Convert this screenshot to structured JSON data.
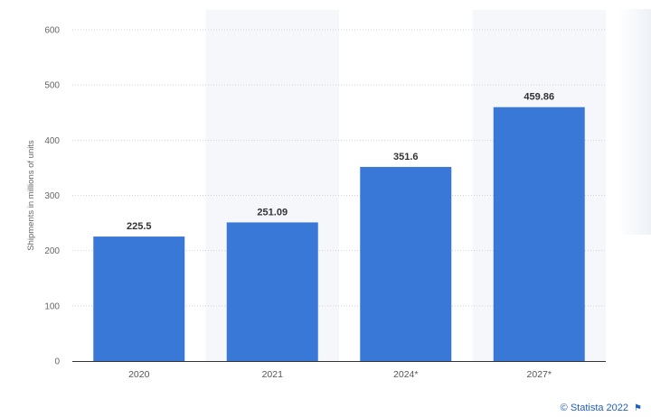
{
  "chart_data": {
    "type": "bar",
    "categories": [
      "2020",
      "2021",
      "2024*",
      "2027*"
    ],
    "values": [
      225.5,
      251.09,
      351.6,
      459.86
    ],
    "value_labels": [
      "225.5",
      "251.09",
      "351.6",
      "459.86"
    ],
    "ylabel": "Shipments in millions of units",
    "ylim": [
      0,
      600
    ],
    "yticks": [
      0,
      100,
      200,
      300,
      400,
      500,
      600
    ],
    "grid": true,
    "bar_color": "#3a78d8",
    "band_color": "#f5f7fb"
  },
  "credit": {
    "text": "© Statista 2022",
    "icon": "flag-icon"
  }
}
